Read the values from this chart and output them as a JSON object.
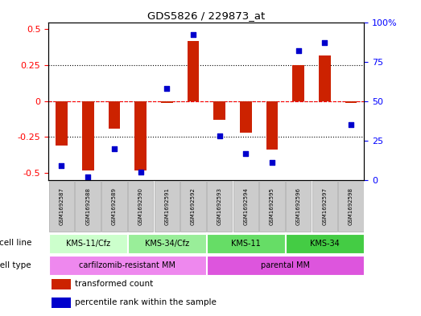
{
  "title": "GDS5826 / 229873_at",
  "samples": [
    "GSM1692587",
    "GSM1692588",
    "GSM1692589",
    "GSM1692590",
    "GSM1692591",
    "GSM1692592",
    "GSM1692593",
    "GSM1692594",
    "GSM1692595",
    "GSM1692596",
    "GSM1692597",
    "GSM1692598"
  ],
  "transformed_count": [
    -0.31,
    -0.48,
    -0.19,
    -0.48,
    -0.01,
    0.42,
    -0.13,
    -0.22,
    -0.34,
    0.25,
    0.32,
    -0.01
  ],
  "percentile_rank": [
    9,
    2,
    20,
    5,
    58,
    92,
    28,
    17,
    11,
    82,
    87,
    35
  ],
  "ylim_left": [
    -0.55,
    0.55
  ],
  "ylim_right": [
    0,
    100
  ],
  "yticks_left": [
    -0.5,
    -0.25,
    0,
    0.25,
    0.5
  ],
  "yticks_right": [
    0,
    25,
    50,
    75,
    100
  ],
  "ytick_labels_left": [
    "-0.5",
    "-0.25",
    "0",
    "0.25",
    "0.5"
  ],
  "ytick_labels_right": [
    "0",
    "25",
    "50",
    "75",
    "100%"
  ],
  "bar_color": "#cc2200",
  "dot_color": "#0000cc",
  "cell_line_groups": [
    {
      "label": "KMS-11/Cfz",
      "start": 0,
      "end": 2,
      "color": "#ccffcc"
    },
    {
      "label": "KMS-34/Cfz",
      "start": 3,
      "end": 5,
      "color": "#99ee99"
    },
    {
      "label": "KMS-11",
      "start": 6,
      "end": 8,
      "color": "#66dd66"
    },
    {
      "label": "KMS-34",
      "start": 9,
      "end": 11,
      "color": "#44cc44"
    }
  ],
  "cell_type_groups": [
    {
      "label": "carfilzomib-resistant MM",
      "start": 0,
      "end": 5,
      "color": "#ee88ee"
    },
    {
      "label": "parental MM",
      "start": 6,
      "end": 11,
      "color": "#dd55dd"
    }
  ],
  "cell_line_label": "cell line",
  "cell_type_label": "cell type",
  "legend_items": [
    {
      "label": "transformed count",
      "color": "#cc2200"
    },
    {
      "label": "percentile rank within the sample",
      "color": "#0000cc"
    }
  ],
  "bg_color": "#ffffff",
  "plot_bg": "#ffffff"
}
